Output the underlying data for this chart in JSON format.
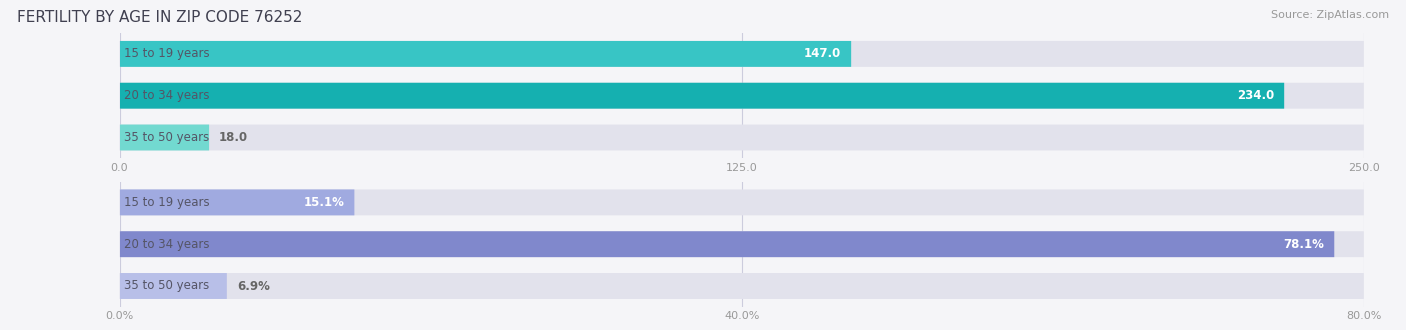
{
  "title": "FERTILITY BY AGE IN ZIP CODE 76252",
  "source": "Source: ZipAtlas.com",
  "top_chart": {
    "categories": [
      "15 to 19 years",
      "20 to 34 years",
      "35 to 50 years"
    ],
    "values": [
      147.0,
      234.0,
      18.0
    ],
    "xlim": [
      0,
      250
    ],
    "xticks": [
      0.0,
      125.0,
      250.0
    ],
    "xtick_labels": [
      "0.0",
      "125.0",
      "250.0"
    ],
    "bar_colors": [
      "#38c5c5",
      "#15b0b0",
      "#72d9d0"
    ],
    "label_color": "#ffffff",
    "outside_label_color": "#666666"
  },
  "bottom_chart": {
    "categories": [
      "15 to 19 years",
      "20 to 34 years",
      "35 to 50 years"
    ],
    "values": [
      15.1,
      78.1,
      6.9
    ],
    "value_labels": [
      "15.1%",
      "78.1%",
      "6.9%"
    ],
    "xlim": [
      0,
      80
    ],
    "xticks": [
      0.0,
      40.0,
      80.0
    ],
    "xtick_labels": [
      "0.0%",
      "40.0%",
      "80.0%"
    ],
    "bar_colors": [
      "#a0aae0",
      "#8088cc",
      "#b8bfe8"
    ],
    "label_color": "#ffffff",
    "outside_label_color": "#666666"
  },
  "fig_bg_color": "#f5f5f8",
  "bar_bg_color": "#e2e2ec",
  "cat_label_color": "#555566",
  "bar_height": 0.62,
  "label_fontsize": 8.5,
  "tick_fontsize": 8,
  "title_fontsize": 11,
  "source_fontsize": 8,
  "cat_label_fontsize": 8.5
}
